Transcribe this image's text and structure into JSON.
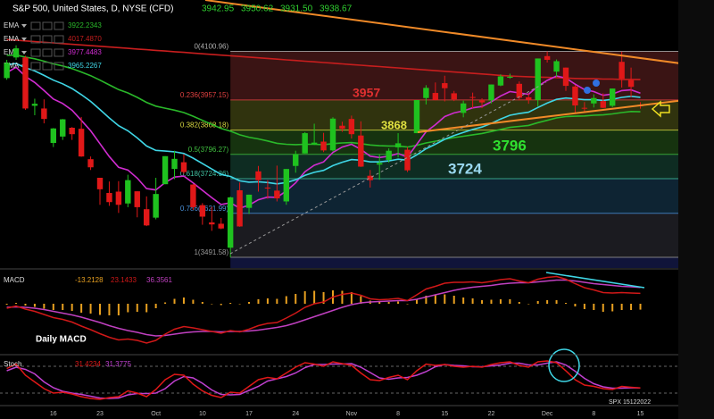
{
  "chart_data": [
    {
      "type": "candlestick",
      "title": "S&P 500, United States, D, NYSE (CFD)",
      "categories": [
        null,
        null,
        null,
        null,
        null,
        "16",
        null,
        null,
        null,
        null,
        "23",
        null,
        null,
        null,
        null,
        null,
        "Oct",
        null,
        null,
        null,
        null,
        "10",
        null,
        null,
        null,
        null,
        "17",
        null,
        null,
        null,
        null,
        "24",
        null,
        null,
        null,
        null,
        null,
        "Nov",
        null,
        null,
        null,
        null,
        "8",
        null,
        null,
        null,
        null,
        "15",
        null,
        null,
        null,
        null,
        "22",
        null,
        null,
        null,
        null,
        null,
        "Dec",
        null,
        null,
        null,
        null,
        "8",
        null,
        null,
        null,
        null,
        "15"
      ],
      "open": [
        4022,
        4083,
        4083,
        3940,
        3932,
        3830,
        3849,
        3875,
        3872,
        3782,
        3727,
        3682,
        3686,
        3651,
        3687,
        3634,
        3609,
        3708,
        3753,
        3773,
        3707,
        3646,
        3595,
        3591,
        3520,
        3690,
        3638,
        3746,
        3698,
        3689,
        3657,
        3762,
        3799,
        3825,
        3834,
        3808,
        3881,
        3901,
        3852,
        3733,
        3766,
        3780,
        3817,
        3810,
        3859,
        3963,
        3978,
        4007,
        3977,
        3919,
        3966,
        3956,
        3956,
        4000,
        4023,
        4005,
        3965,
        3957,
        4087,
        4041,
        4053,
        3997,
        3934,
        3947,
        3954,
        3940,
        4070,
        4016,
        3942.95
      ],
      "high": [
        4076,
        4119,
        4088,
        3961,
        3959,
        3874,
        3901,
        3877,
        3907,
        3790,
        3727,
        3716,
        3717,
        3736,
        3687,
        3672,
        3727,
        3791,
        3807,
        3797,
        3708,
        3652,
        3641,
        3608,
        3671,
        3713,
        3677,
        3762,
        3720,
        3763,
        3753,
        3807,
        3862,
        3887,
        3860,
        3906,
        3893,
        3911,
        3894,
        3750,
        3796,
        3814,
        3859,
        3818,
        3957,
        4001,
        4009,
        4029,
        3984,
        3955,
        3979,
        3962,
        4003,
        4033,
        4035,
        4012,
        3976,
        4080,
        4100.96,
        4077,
        4053,
        4002,
        3951,
        3974,
        3977,
        3991,
        4100,
        4053,
        3950.62
      ],
      "low": [
        4017,
        4076,
        3928,
        3912,
        3888,
        3818,
        3839,
        3839,
        3789,
        3750,
        3647,
        3644,
        3623,
        3640,
        3610,
        3584,
        3604,
        3708,
        3723,
        3739,
        3632,
        3588,
        3570,
        3575,
        3491.58,
        3582,
        3620,
        3686,
        3665,
        3657,
        3647,
        3742,
        3799,
        3824,
        3803,
        3805,
        3863,
        3843,
        3759,
        3698,
        3721,
        3772,
        3787,
        3744,
        3859,
        3944,
        3956,
        3953,
        3954,
        3906,
        3933,
        3933,
        3947,
        3998,
        4020,
        3956,
        3946,
        3938,
        4068,
        4026,
        3984,
        3918,
        3923,
        3935,
        3933,
        3936,
        3994,
        3966,
        3931.5
      ],
      "close": [
        4067,
        4110,
        3932,
        3946,
        3901,
        3873,
        3900,
        3856,
        3790,
        3758,
        3693,
        3655,
        3647,
        3720,
        3640,
        3586,
        3679,
        3791,
        3783,
        3744,
        3640,
        3612,
        3589,
        3577,
        3669,
        3583,
        3677,
        3720,
        3696,
        3666,
        3753,
        3797,
        3859,
        3831,
        3808,
        3902,
        3872,
        3856,
        3760,
        3720,
        3771,
        3807,
        3829,
        3749,
        3957,
        3993,
        3957,
        3992,
        3959,
        3947,
        3965,
        3950,
        4003,
        4027,
        4026,
        3964,
        3958,
        4080,
        4076,
        4072,
        3999,
        3941,
        3933,
        3963,
        3934,
        3991,
        4020,
        3996,
        3938.67
      ],
      "last_labels": {
        "open": "3942.95",
        "high": "3950.62",
        "low": "3931.50",
        "close": "3938.67"
      },
      "up_color": "#1fc21f",
      "down_color": "#e01818",
      "ylim": [
        3460,
        4253
      ],
      "yticks": [
        {
          "value": 4200,
          "label": "4200.00"
        },
        {
          "value": 4150,
          "label": "4150.00"
        },
        {
          "value": 4100,
          "label": "4100.00"
        },
        {
          "value": 4050,
          "label": "4050.00"
        },
        {
          "value": 4000,
          "label": "4000.00"
        },
        {
          "value": 3950,
          "label": "3950.00"
        },
        {
          "value": 3900,
          "label": "3900.00"
        },
        {
          "value": 3850,
          "label": "3850.00"
        },
        {
          "value": 3800,
          "label": "3800.00"
        },
        {
          "value": 3750,
          "label": "3750.00"
        },
        {
          "value": 3700,
          "label": "3700.00"
        },
        {
          "value": 3650,
          "label": "3650.00"
        },
        {
          "value": 3600,
          "label": "3600.00"
        },
        {
          "value": 3550,
          "label": "3550.00"
        },
        {
          "value": 3500,
          "label": "3500.00"
        }
      ],
      "series": [
        {
          "name": "EMA",
          "color": "#2ab82a",
          "legend_value": "3922.2343",
          "tag": "3922.23",
          "values": [
            4089,
            4090,
            4084,
            4079,
            4072,
            4064,
            4058,
            4050,
            4040,
            4029,
            4016,
            4002,
            3988,
            3978,
            3965,
            3950,
            3939,
            3933,
            3927,
            3920,
            3909,
            3897,
            3885,
            3873,
            3865,
            3854,
            3847,
            3842,
            3836,
            3829,
            3826,
            3825,
            3826,
            3826,
            3825,
            3828,
            3830,
            3831,
            3828,
            3824,
            3822,
            3821,
            3821,
            3818,
            3823,
            3830,
            3835,
            3841,
            3846,
            3850,
            3854,
            3858,
            3864,
            3870,
            3876,
            3879,
            3882,
            3890,
            3897,
            3904,
            3908,
            3909,
            3910,
            3912,
            3913,
            3916,
            3920,
            3923,
            3922.2343
          ]
        },
        {
          "name": "EMA",
          "color": "#c81e1e",
          "legend_value": "4017.4870",
          "tag": "4017.49",
          "values": [
            4136,
            4134,
            4132,
            4130,
            4128,
            4126,
            4124,
            4122,
            4120,
            4118,
            4116,
            4114,
            4112,
            4110,
            4108,
            4106,
            4104,
            4102,
            4100,
            4098,
            4096,
            4094,
            4092,
            4090,
            4088,
            4086,
            4084,
            4082,
            4080,
            4078,
            4076,
            4074,
            4072,
            4070,
            4068,
            4066,
            4064,
            4062,
            4060,
            4058,
            4056,
            4054,
            4052,
            4050,
            4048,
            4046,
            4044,
            4042,
            4040,
            4038,
            4036,
            4034,
            4032,
            4030,
            4028,
            4027,
            4026,
            4025,
            4024,
            4023,
            4022,
            4021,
            4020,
            4020,
            4019,
            4019,
            4018,
            4018,
            4017.487
          ]
        },
        {
          "name": "EMA",
          "color": "#d02cd0",
          "legend_value": "3977.4483",
          "tag": "3977.45",
          "values": [
            4038,
            4054,
            4027,
            4009,
            3985,
            3960,
            3947,
            3927,
            3897,
            3866,
            3828,
            3790,
            3758,
            3750,
            3726,
            3695,
            3691,
            3713,
            3729,
            3732,
            3712,
            3690,
            3668,
            3648,
            3653,
            3637,
            3646,
            3662,
            3670,
            3669,
            3688,
            3712,
            3745,
            3764,
            3774,
            3802,
            3818,
            3826,
            3811,
            3791,
            3787,
            3791,
            3799,
            3788,
            3826,
            3863,
            3884,
            3908,
            3919,
            3925,
            3934,
            3938,
            3952,
            3969,
            3982,
            3978,
            3974,
            3998,
            4015,
            4028,
            4022,
            4004,
            3988,
            3982,
            3971,
            3975,
            3985,
            3987,
            3977.4483
          ]
        },
        {
          "name": "EMA",
          "color": "#3fd6e6",
          "legend_value": "3965.2267",
          "tag": "3965.23",
          "values": [
            4061,
            4065,
            4053,
            4043,
            4030,
            4016,
            4005,
            3991,
            3973,
            3953,
            3929,
            3904,
            3881,
            3866,
            3845,
            3821,
            3808,
            3806,
            3804,
            3799,
            3785,
            3769,
            3753,
            3737,
            3731,
            3718,
            3714,
            3715,
            3713,
            3709,
            3713,
            3721,
            3734,
            3743,
            3749,
            3763,
            3773,
            3781,
            3779,
            3774,
            3774,
            3777,
            3782,
            3779,
            3795,
            3813,
            3826,
            3841,
            3852,
            3861,
            3870,
            3877,
            3888,
            3901,
            3912,
            3917,
            3921,
            3935,
            3948,
            3959,
            3963,
            3961,
            3958,
            3958,
            3956,
            3959,
            3965,
            3968,
            3965.2267
          ]
        }
      ],
      "fib": [
        {
          "label": "0(4100.96)",
          "value": 4100.96,
          "color": "#b0b0b0",
          "fill": "#3a1414"
        },
        {
          "label": "0.236(3957.15)",
          "value": 3957.15,
          "color": "#e04040",
          "fill": "#30330e"
        },
        {
          "label": "0.382(3868.18)",
          "value": 3868.18,
          "color": "#d8d840",
          "fill": "#16330f"
        },
        {
          "label": "0.5(3796.27)",
          "value": 3796.27,
          "color": "#40c040",
          "fill": "#0e2c22"
        },
        {
          "label": "0.618(3724.36)",
          "value": 3724.36,
          "color": "#40c0a0",
          "fill": "#0e2433"
        },
        {
          "label": "0.786(3621.99)",
          "value": 3621.99,
          "color": "#4a90d8",
          "fill": "#1b1b20"
        },
        {
          "label": "1(3491.58)",
          "value": 3491.58,
          "color": "#9a9a9a",
          "fill": "#10143a"
        }
      ],
      "annotations": [
        {
          "text": "3957",
          "color": "#e03030"
        },
        {
          "text": "3868",
          "color": "#e0e040"
        },
        {
          "text": "3796",
          "color": "#30e030"
        },
        {
          "text": "3724",
          "color": "#9ad8f0"
        }
      ]
    },
    {
      "type": "macd",
      "title": "MACD",
      "annotation": "Daily MACD",
      "ylim": [
        -110,
        74
      ],
      "yticks": [
        {
          "value": -100,
          "label": "-100.0000"
        }
      ],
      "histogram": {
        "color": "#e8a020",
        "values": [
          -2,
          2,
          -4,
          -7,
          -11,
          -14,
          -14,
          -16,
          -20,
          -22,
          -25,
          -26,
          -26,
          -19,
          -18,
          -19,
          -10,
          3,
          11,
          14,
          9,
          4,
          0,
          -3,
          2,
          -1,
          4,
          10,
          12,
          11,
          17,
          22,
          28,
          29,
          26,
          30,
          29,
          26,
          17,
          7,
          4,
          4,
          5,
          0,
          10,
          18,
          19,
          21,
          18,
          14,
          12,
          8,
          9,
          10,
          10,
          4,
          0,
          6,
          8,
          8,
          2,
          -6,
          -12,
          -14,
          -18,
          -17,
          -14,
          -14,
          -13.2128
        ]
      },
      "macd": {
        "color": "#d01818",
        "values": [
          -10,
          -5,
          -12,
          -17,
          -24,
          -31,
          -35,
          -41,
          -50,
          -58,
          -67,
          -75,
          -81,
          -79,
          -82,
          -88,
          -82,
          -68,
          -57,
          -51,
          -54,
          -58,
          -62,
          -66,
          -60,
          -63,
          -57,
          -49,
          -44,
          -42,
          -32,
          -21,
          -8,
          0,
          4,
          15,
          21,
          24,
          19,
          11,
          9,
          10,
          12,
          7,
          20,
          33,
          39,
          46,
          48,
          48,
          49,
          47,
          50,
          54,
          56,
          51,
          47,
          55,
          59,
          61,
          55,
          45,
          36,
          31,
          25,
          24,
          25,
          24,
          23.1433
        ]
      },
      "signal": {
        "color": "#c040c0",
        "values": [
          -8,
          -7,
          -8,
          -10,
          -13,
          -17,
          -21,
          -25,
          -30,
          -36,
          -42,
          -49,
          -55,
          -60,
          -64,
          -69,
          -72,
          -71,
          -68,
          -65,
          -63,
          -62,
          -62,
          -63,
          -62,
          -62,
          -61,
          -59,
          -56,
          -53,
          -49,
          -43,
          -36,
          -29,
          -22,
          -15,
          -8,
          -2,
          2,
          4,
          5,
          6,
          7,
          7,
          10,
          15,
          20,
          25,
          30,
          34,
          37,
          39,
          41,
          44,
          46,
          47,
          47,
          49,
          51,
          53,
          53,
          51,
          48,
          45,
          43,
          41,
          39,
          38,
          36.3561
        ]
      }
    },
    {
      "type": "stochastic",
      "title": "Stoch",
      "annotation": "SPX 15122022",
      "ylim": [
        0,
        100
      ],
      "yticks": [
        {
          "value": 80,
          "label": "80.0000"
        },
        {
          "value": 20,
          "label": "20.0000"
        }
      ],
      "k": {
        "color": "#e01818",
        "values": [
          75,
          85,
          60,
          45,
          30,
          20,
          22,
          18,
          12,
          8,
          6,
          10,
          12,
          25,
          20,
          12,
          28,
          50,
          62,
          60,
          40,
          25,
          15,
          10,
          22,
          20,
          35,
          50,
          55,
          52,
          65,
          78,
          88,
          85,
          80,
          90,
          86,
          82,
          65,
          50,
          48,
          55,
          60,
          50,
          70,
          85,
          82,
          84,
          80,
          78,
          80,
          78,
          84,
          88,
          90,
          82,
          78,
          90,
          92,
          88,
          70,
          50,
          38,
          35,
          30,
          28,
          35,
          33,
          31.4234
        ]
      },
      "d": {
        "color": "#c040d0",
        "values": [
          70,
          78,
          73,
          63,
          45,
          32,
          24,
          20,
          17,
          13,
          9,
          8,
          9,
          16,
          19,
          19,
          20,
          30,
          47,
          57,
          54,
          42,
          27,
          17,
          16,
          17,
          26,
          35,
          47,
          52,
          57,
          65,
          77,
          84,
          84,
          85,
          85,
          86,
          78,
          66,
          54,
          51,
          54,
          55,
          60,
          68,
          79,
          84,
          82,
          81,
          79,
          79,
          81,
          83,
          87,
          87,
          83,
          83,
          87,
          90,
          83,
          69,
          53,
          41,
          34,
          31,
          31,
          32,
          31.3775
        ]
      }
    }
  ]
}
